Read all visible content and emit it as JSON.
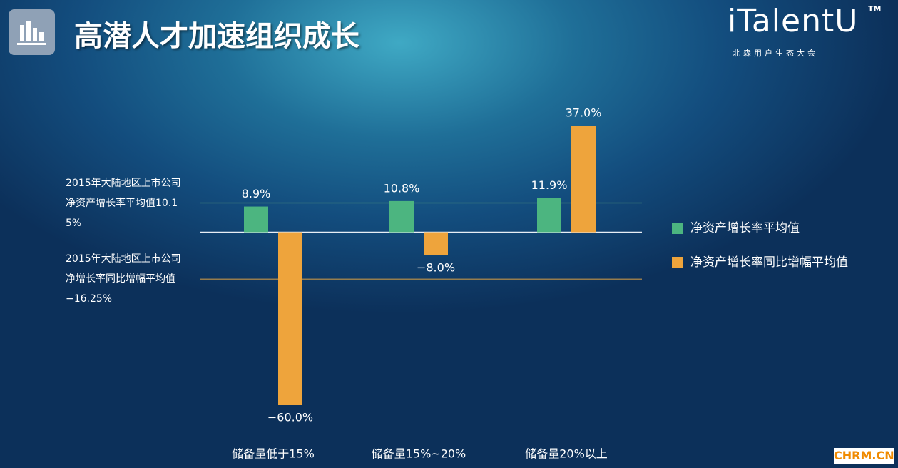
{
  "title": "高潜人才加速组织成长",
  "logo": {
    "name": "iTalentU",
    "tm": "TM",
    "subtitle": "北森用户生态大会"
  },
  "watermark": "CHRM.CN",
  "chart_data": {
    "type": "bar",
    "categories": [
      "储备量低于15%",
      "储备量15%~20%",
      "储备量20%以上"
    ],
    "series": [
      {
        "name": "净资产增长率平均值",
        "color": "#4cb580",
        "values": [
          8.9,
          10.8,
          11.9
        ],
        "value_labels": [
          "8.9%",
          "10.8%",
          "11.9%"
        ]
      },
      {
        "name": "净资产增长率同比增幅平均值",
        "color": "#eea43c",
        "values": [
          -60.0,
          -8.0,
          37.0
        ],
        "value_labels": [
          "−60.0%",
          "−8.0%",
          "37.0%"
        ]
      }
    ],
    "reference_lines": [
      {
        "value": 10.15,
        "label": "2015年大陆地区上市公司净资产增长率平均值10.15%",
        "color": "#5fa37d"
      },
      {
        "value": -16.25,
        "label": "2015年大陆地区上市公司净增长率同比增幅平均值−16.25%",
        "color": "#c49447"
      }
    ],
    "legend": "right"
  }
}
